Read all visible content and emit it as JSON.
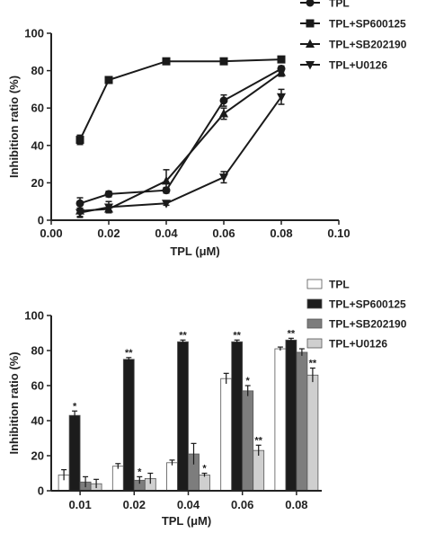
{
  "chart_data": [
    {
      "type": "line",
      "xlabel": "TPL (μM)",
      "ylabel": "Inhibition ratio (%)",
      "xlim": [
        0,
        0.1
      ],
      "ylim": [
        0,
        100
      ],
      "xticks": [
        "0.00",
        "0.02",
        "0.04",
        "0.06",
        "0.08",
        "0.10"
      ],
      "yticks": [
        "0",
        "20",
        "40",
        "60",
        "80",
        "100"
      ],
      "legend_position": "top-right",
      "x": [
        0.01,
        0.02,
        0.04,
        0.06,
        0.08
      ],
      "series": [
        {
          "name": "TPL",
          "marker": "circle",
          "values": [
            9,
            14,
            16,
            64,
            81
          ],
          "errors": [
            3,
            1.5,
            1.5,
            3,
            1.5
          ]
        },
        {
          "name": "TPL+SP600125",
          "marker": "square",
          "values": [
            43,
            75,
            85,
            85,
            86
          ],
          "errors": [
            2.5,
            1,
            1,
            1,
            1
          ]
        },
        {
          "name": "TPL+SB202190",
          "marker": "triangle-up",
          "values": [
            5,
            6,
            21,
            57,
            79
          ],
          "errors": [
            3,
            2,
            6,
            3,
            2
          ]
        },
        {
          "name": "TPL+U0126",
          "marker": "triangle-down",
          "values": [
            4,
            7,
            9,
            23,
            66
          ],
          "errors": [
            2.5,
            3,
            1,
            3,
            4
          ]
        }
      ]
    },
    {
      "type": "bar",
      "xlabel": "TPL (μM)",
      "ylabel": "Inhibition ratio (%)",
      "ylim": [
        0,
        100
      ],
      "yticks": [
        "0",
        "20",
        "40",
        "60",
        "80",
        "100"
      ],
      "categories": [
        "0.01",
        "0.02",
        "0.04",
        "0.06",
        "0.08"
      ],
      "legend_position": "top-right",
      "series": [
        {
          "name": "TPL",
          "color": "#ffffff",
          "values": [
            9,
            14,
            16,
            64,
            81
          ],
          "errors": [
            3,
            1.5,
            1.5,
            3,
            1
          ],
          "sig": [
            "",
            "",
            "",
            "",
            ""
          ]
        },
        {
          "name": "TPL+SP600125",
          "color": "#1c1c1c",
          "values": [
            43,
            75,
            85,
            85,
            86
          ],
          "errors": [
            2.5,
            1,
            1,
            1,
            1
          ],
          "sig": [
            "*",
            "**",
            "**",
            "**",
            "**"
          ]
        },
        {
          "name": "TPL+SB202190",
          "color": "#7d7d7d",
          "values": [
            5,
            6,
            21,
            57,
            79
          ],
          "errors": [
            3,
            2,
            6,
            3,
            2
          ],
          "sig": [
            "",
            "*",
            "",
            "*",
            ""
          ]
        },
        {
          "name": "TPL+U0126",
          "color": "#cfcfcf",
          "values": [
            4,
            7,
            9,
            23,
            66
          ],
          "errors": [
            2.5,
            3,
            1,
            3,
            4
          ],
          "sig": [
            "",
            "",
            "*",
            "**",
            "**"
          ]
        }
      ]
    }
  ]
}
